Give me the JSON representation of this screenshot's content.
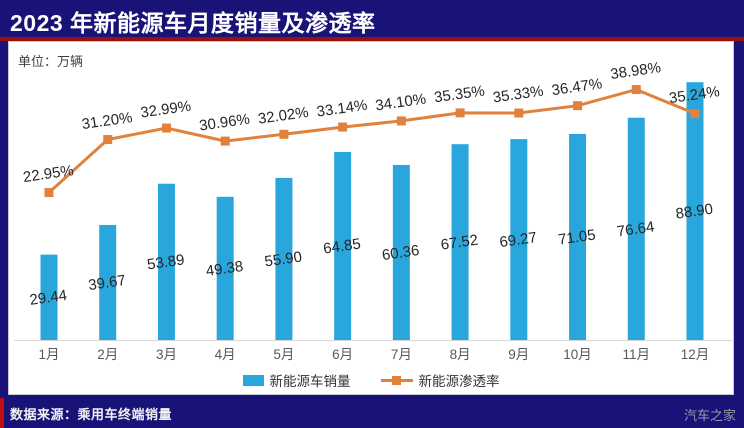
{
  "page": {
    "title": "2023 年新能源车月度销量及渗透率",
    "unit_label": "单位：万辆",
    "source": "数据来源：乘用车终端销量",
    "watermark": "汽车之家"
  },
  "legend": {
    "bar_label": "新能源车销量",
    "line_label": "新能源渗透率"
  },
  "colors": {
    "background": "#191277",
    "panel": "#ffffff",
    "bar": "#29a7dc",
    "line": "#e0813c",
    "divider_red": "#9a100c",
    "label_text": "#262626",
    "axis_line": "#d9d9d9",
    "x_label": "#595959",
    "watermark": "#9a9aa8"
  },
  "chart_data": {
    "type": "bar",
    "combo": "bar+line",
    "title": "2023 年新能源车月度销量及渗透率",
    "unit": "万辆",
    "categories": [
      "1月",
      "2月",
      "3月",
      "4月",
      "5月",
      "6月",
      "7月",
      "8月",
      "9月",
      "10月",
      "11月",
      "12月"
    ],
    "series": [
      {
        "name": "新能源车销量",
        "type": "bar",
        "values": [
          29.44,
          39.67,
          53.89,
          49.38,
          55.9,
          64.85,
          60.36,
          67.52,
          69.27,
          71.05,
          76.64,
          88.9
        ],
        "labels": [
          "29.44",
          "39.67",
          "53.89",
          "49.38",
          "55.90",
          "64.85",
          "60.36",
          "67.52",
          "69.27",
          "71.05",
          "76.64",
          "88.90"
        ]
      },
      {
        "name": "新能源渗透率",
        "type": "line",
        "values": [
          22.95,
          31.2,
          32.99,
          30.96,
          32.02,
          33.14,
          34.1,
          35.35,
          35.33,
          36.47,
          38.98,
          35.24
        ],
        "labels": [
          "22.95%",
          "31.20%",
          "32.99%",
          "30.96%",
          "32.02%",
          "33.14%",
          "34.10%",
          "35.35%",
          "35.33%",
          "36.47%",
          "38.98%",
          "35.24%"
        ]
      }
    ],
    "legend_position": "bottom",
    "grid": false,
    "xaxis_line": true,
    "yaxis_visible": false
  }
}
